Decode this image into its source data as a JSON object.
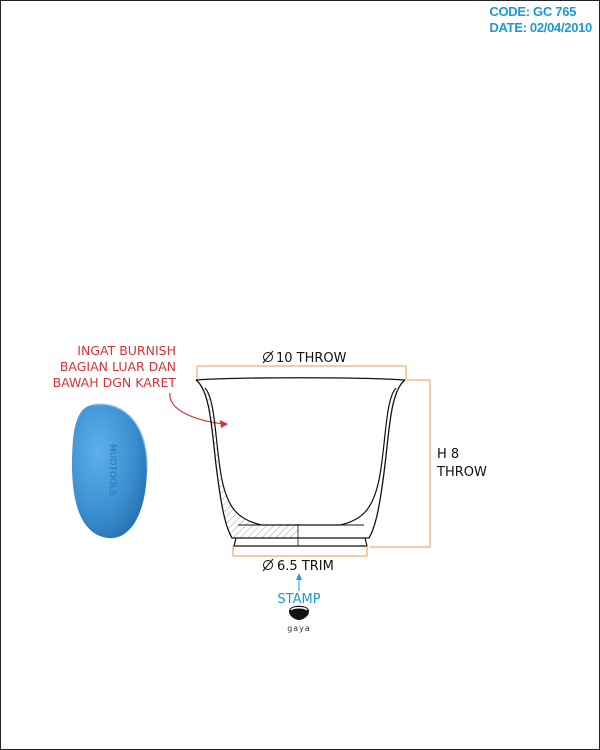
{
  "header": {
    "code": "CODE: GC 765",
    "date": "DATE: 02/04/2010"
  },
  "notes": {
    "burnish": [
      "INGAT BURNISH",
      "BAGIAN LUAR DAN",
      "BAWAH DGN KARET"
    ]
  },
  "dimensions": {
    "top_diameter": "10 THROW",
    "height_line1": "H 8",
    "height_line2": "THROW",
    "foot_diameter": "6.5 TRIM"
  },
  "stamp": {
    "label": "STAMP",
    "logo_text": "gaya"
  },
  "tool": {
    "imprint_text": "MUDTOOLS"
  },
  "colors": {
    "header": "#1a9ad6",
    "note": "#d4333c",
    "dimension_line": "#e89a4a",
    "stamp": "#1a9ad6",
    "rib": "#3a8fd0"
  }
}
